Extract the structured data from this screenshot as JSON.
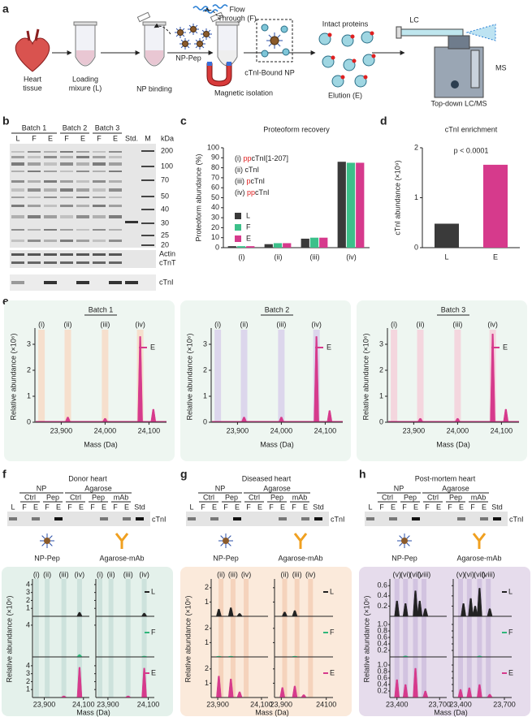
{
  "figure": {
    "panel_labels": [
      "a",
      "b",
      "c",
      "d",
      "e",
      "f",
      "g",
      "h"
    ],
    "lane_colors": {
      "L": "#222222",
      "F": "#2fb67a",
      "E": "#d63a8c"
    },
    "a": {
      "heart": [
        "Heart",
        "tissue"
      ],
      "loading": [
        "Loading",
        "mixure (L)"
      ],
      "binding": "NP binding",
      "np_pep": "NP-Pep",
      "flow": [
        "Flow",
        "Through (F)"
      ],
      "magnetic": "Magnetic isolation",
      "bound": "cTnI-Bound NP",
      "intact": "Intact proteins",
      "elution": "Elution (E)",
      "lc": "LC",
      "ms": "MS",
      "topdown": "Top-down LC/MS"
    },
    "b": {
      "batches": [
        "Batch 1",
        "Batch 2",
        "Batch 3"
      ],
      "lanes": [
        "L",
        "F",
        "E",
        "F",
        "E",
        "F",
        "E"
      ],
      "std": "Std.",
      "m": "M",
      "unit": "kDa",
      "markers": [
        200,
        100,
        70,
        50,
        40,
        30,
        25,
        20
      ],
      "bands": [
        "Actin",
        "cTnT",
        "cTnI"
      ]
    },
    "e": {
      "batches": [
        {
          "title": "Batch 1",
          "band": "#f6dfcd"
        },
        {
          "title": "Batch 2",
          "band": "#dcd6ec"
        },
        {
          "title": "Batch 3",
          "band": "#f4d6de"
        }
      ],
      "bg": "#eef6f1",
      "roman": {
        "labels": [
          "(i)",
          "(ii)",
          "(iii)",
          "(iv)"
        ],
        "x": [
          23855,
          23915,
          24000,
          24080
        ]
      },
      "xlim": [
        23840,
        24140
      ],
      "xticks": [
        {
          "value": 23900,
          "label": "23,900"
        },
        {
          "value": 24000,
          "label": "24,000"
        },
        {
          "value": 24100,
          "label": "24,100"
        }
      ],
      "ylim": [
        0,
        3.5
      ],
      "yticks": [
        0,
        1,
        2,
        3
      ],
      "ylabel": "Relative abundance (×10⁶)",
      "xlabel": "Mass (Da)",
      "legend": "E",
      "color": "#d63a8c",
      "spectra": [
        {
          "x": [
            23915,
            24000,
            24080,
            24110
          ],
          "y": [
            0.2,
            0.15,
            3.3,
            0.5
          ]
        },
        {
          "x": [
            23915,
            24000,
            24080,
            24110
          ],
          "y": [
            0.2,
            0.2,
            3.3,
            0.45
          ]
        },
        {
          "x": [
            23915,
            24000,
            24080,
            24110
          ],
          "y": [
            0.15,
            0.15,
            3.4,
            0.5
          ]
        }
      ]
    },
    "fgh": [
      {
        "title": "Donor heart",
        "title_color": "#2fa86a",
        "bg": "#e4f1eb",
        "band": "#cde2dc",
        "gel": {
          "groups": [
            "NP",
            "Agarose"
          ],
          "subgroups": [
            "Ctrl",
            "Pep",
            "Ctrl",
            "Pep",
            "mAb"
          ],
          "lanes": [
            "L",
            "F",
            "E",
            "F",
            "E",
            "F",
            "E",
            "F",
            "E",
            "F",
            "E"
          ],
          "std": "Std",
          "band": "cTnI"
        },
        "icons": [
          "NP-Pep",
          "Agarose-mAb"
        ],
        "ylabel": "Relative abundance (×10⁶)",
        "xlabel": "Mass (Da)",
        "xlim": [
          23840,
          24130
        ],
        "xticks": [
          [
            {
              "value": 23900,
              "label": "23,900"
            },
            {
              "value": 24100,
              "label": "24,100"
            }
          ],
          [
            {
              "value": 23900,
              "label": "23,900"
            },
            {
              "value": 24100,
              "label": "24,100"
            }
          ]
        ],
        "roman": {
          "labels": [
            "(i)",
            "(ii)",
            "(iii)",
            "(iv)"
          ],
          "x": [
            23860,
            23915,
            24000,
            24080
          ]
        },
        "rows": [
          {
            "name": "L",
            "ylim": [
              0,
              4.5
            ],
            "yticks": [
              1,
              2,
              3,
              4
            ]
          },
          {
            "name": "F",
            "ylim": [
              0,
              4.5
            ],
            "yticks": [
              4
            ]
          },
          {
            "name": "E",
            "ylim": [
              0,
              4.5
            ],
            "yticks": [
              1,
              2,
              3,
              4
            ]
          }
        ],
        "spectra": [
          [
            {
              "x": [
                24080
              ],
              "y": [
                0.5
              ]
            },
            {
              "x": [
                24080
              ],
              "y": [
                0.3
              ]
            },
            {
              "x": [
                24000,
                24080
              ],
              "y": [
                0.2,
                3.8
              ]
            }
          ],
          [
            {
              "x": [
                24080
              ],
              "y": [
                0.4
              ]
            },
            {
              "x": [
                24080
              ],
              "y": [
                0.1
              ]
            },
            {
              "x": [
                24000,
                24080
              ],
              "y": [
                0.2,
                3.7
              ]
            }
          ]
        ]
      },
      {
        "title": "Diseased heart",
        "title_color": "#e8762b",
        "bg": "#fbeadb",
        "band": "#f5d3bc",
        "gel": {
          "groups": [
            "NP",
            "Agarose"
          ],
          "subgroups": [
            "Ctrl",
            "Pep",
            "Ctrl",
            "Pep",
            "mAb"
          ],
          "lanes": [
            "L",
            "F",
            "E",
            "F",
            "E",
            "F",
            "E",
            "F",
            "E",
            "F",
            "E"
          ],
          "std": "Std",
          "band": "cTnI"
        },
        "icons": [
          "NP-Pep",
          "Agarose-mAb"
        ],
        "ylabel": "Relative abundance (×10⁶)",
        "xlabel": "Mass (Da)",
        "xlim": [
          23870,
          24130
        ],
        "xticks": [
          [
            {
              "value": 23900,
              "label": "23,900"
            },
            {
              "value": 24100,
              "label": "24,100"
            }
          ],
          [
            {
              "value": 23900,
              "label": "23,900"
            },
            {
              "value": 24100,
              "label": "24100"
            }
          ]
        ],
        "roman": {
          "labels": [
            "(ii)",
            "(iii)",
            "(iv)"
          ],
          "x": [
            23915,
            23970,
            24030
          ]
        },
        "rows": [
          {
            "name": "L",
            "ylim": [
              0,
              2.5
            ],
            "yticks": [
              1,
              2
            ]
          },
          {
            "name": "F",
            "ylim": [
              0,
              2.5
            ],
            "yticks": [
              1,
              2
            ]
          },
          {
            "name": "E",
            "ylim": [
              0,
              2.5
            ],
            "yticks": [
              1,
              2
            ]
          }
        ],
        "spectra": [
          [
            {
              "x": [
                23905,
                23960,
                24000
              ],
              "y": [
                0.5,
                0.6,
                0.2
              ]
            },
            {
              "x": [
                23905,
                23960
              ],
              "y": [
                0.05,
                0.05
              ]
            },
            {
              "x": [
                23905,
                23960,
                24000
              ],
              "y": [
                1.5,
                1.3,
                0.4
              ]
            }
          ],
          [
            {
              "x": [
                23915,
                23960
              ],
              "y": [
                0.3,
                0.4
              ]
            },
            {
              "x": [
                23960
              ],
              "y": [
                0.05
              ]
            },
            {
              "x": [
                23905,
                23960,
                24000
              ],
              "y": [
                0.7,
                0.8,
                0.2
              ]
            }
          ]
        ]
      },
      {
        "title": "Post-mortem heart",
        "title_color": "#7b2a8c",
        "bg": "#e6dcec",
        "band": "#d2c3e0",
        "gel": {
          "groups": [
            "NP",
            "Agarose"
          ],
          "subgroups": [
            "Ctrl",
            "Pep",
            "Ctrl",
            "Pep",
            "mAb"
          ],
          "lanes": [
            "L",
            "F",
            "E",
            "F",
            "E",
            "F",
            "E",
            "F",
            "E",
            "F",
            "E"
          ],
          "std": "Std",
          "band": "cTnI"
        },
        "icons": [
          "NP-Pep",
          "Agarose-mAb"
        ],
        "ylabel": "Relative abundance (×10⁶)",
        "xlabel": "Mass (Da)",
        "xlim": [
          23350,
          23750
        ],
        "xticks": [
          [
            {
              "value": 23400,
              "label": "23,400"
            },
            {
              "value": 23700,
              "label": "23,700"
            }
          ],
          [
            {
              "value": 23400,
              "label": "23,400"
            },
            {
              "value": 23700,
              "label": "23,700"
            }
          ]
        ],
        "roman": {
          "labels": [
            "(v)",
            "(vi)",
            "(vii)",
            "(viii)"
          ],
          "x": [
            23400,
            23460,
            23530,
            23590
          ]
        },
        "rows": [
          {
            "name": "L",
            "ylim": [
              0,
              0.7
            ],
            "yticks": [
              0.2,
              0.4,
              0.6
            ]
          },
          {
            "name": "F",
            "ylim": [
              0,
              1.1
            ],
            "yticks": [
              0.2,
              0.4,
              0.6,
              0.8,
              {
                "value": 1,
                "label": "1.0"
              }
            ]
          },
          {
            "name": "E",
            "ylim": [
              0,
              1.1
            ],
            "yticks": [
              0.2,
              0.4,
              0.6,
              0.8,
              {
                "value": 1,
                "label": "1.0"
              }
            ]
          }
        ],
        "spectra": [
          [
            {
              "x": [
                23400,
                23460,
                23530,
                23560,
                23600
              ],
              "y": [
                0.3,
                0.25,
                0.5,
                0.3,
                0.15
              ]
            },
            {
              "x": [
                23460
              ],
              "y": [
                0.03
              ]
            },
            {
              "x": [
                23400,
                23460,
                23530,
                23600
              ],
              "y": [
                0.55,
                0.4,
                0.9,
                0.2
              ]
            }
          ],
          [
            {
              "x": [
                23420,
                23470,
                23500,
                23530,
                23600
              ],
              "y": [
                0.25,
                0.35,
                0.2,
                0.55,
                0.15
              ]
            },
            {
              "x": [
                23530
              ],
              "y": [
                0.03
              ]
            },
            {
              "x": [
                23400,
                23460,
                23530,
                23600
              ],
              "y": [
                0.25,
                0.3,
                0.4,
                0.1
              ]
            }
          ]
        ]
      }
    ]
  },
  "chart_data": [
    {
      "type": "bar",
      "title": "Proteoform recovery",
      "ylabel": "Proteoform abundance (%)",
      "categories": [
        "(i)",
        "(ii)",
        "(iii)",
        "(iv)"
      ],
      "series": [
        {
          "name": "L",
          "color": "#3a3a3a",
          "values": [
            1.5,
            3.5,
            9,
            86
          ]
        },
        {
          "name": "F",
          "color": "#3cc08a",
          "values": [
            1.5,
            4.5,
            10,
            85
          ]
        },
        {
          "name": "E",
          "color": "#d63a8c",
          "values": [
            1.5,
            4.5,
            10,
            85
          ]
        }
      ],
      "proteoforms": [
        {
          "index": "(i)",
          "mod": "pp",
          "name": "cTnI[1-207]"
        },
        {
          "index": "(ii)",
          "name": "cTnI"
        },
        {
          "index": "(iii)",
          "mod": "p",
          "name": "cTnI"
        },
        {
          "index": "(iv)",
          "mod": "pp",
          "name": "cTnI"
        }
      ],
      "mod_color": "#e02020",
      "ylim": [
        0,
        100
      ],
      "yticks": [
        0,
        10,
        20,
        30,
        40,
        50,
        60,
        70,
        80,
        90,
        100
      ]
    },
    {
      "type": "bar",
      "title": "cTnI enrichment",
      "ylabel": "cTnI abundance (×10⁹)",
      "annotation": "p < 0.0001",
      "categories": [
        "L",
        "E"
      ],
      "values": [
        0.48,
        1.66
      ],
      "colors": [
        "#3a3a3a",
        "#d63a8c"
      ],
      "ylim": [
        0,
        2
      ],
      "yticks": [
        0,
        1,
        2
      ]
    }
  ]
}
